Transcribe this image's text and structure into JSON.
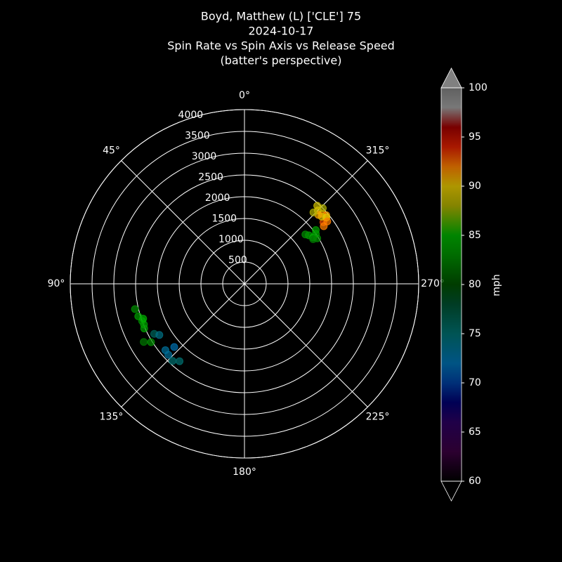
{
  "chart_data": {
    "type": "polar-scatter",
    "title": [
      "Boyd, Matthew (L) ['CLE'] 75",
      "2024-10-17",
      "Spin Rate vs Spin Axis vs Release Speed",
      "(batter's perspective)"
    ],
    "theta": [
      310,
      312,
      315,
      308,
      311,
      314,
      306,
      309,
      313,
      317,
      307,
      316,
      307,
      302,
      307,
      304,
      309,
      305,
      303,
      103,
      107,
      110,
      112,
      109,
      120,
      122,
      114,
      119,
      121,
      130,
      132,
      137,
      140,
      133
    ],
    "r": [
      2450,
      2400,
      2380,
      2300,
      2350,
      2500,
      2250,
      2420,
      2320,
      2450,
      2380,
      2280,
      1850,
      1970,
      2050,
      1900,
      1800,
      2000,
      1880,
      2580,
      2550,
      2500,
      2490,
      2460,
      2670,
      2530,
      2520,
      2370,
      2280,
      2370,
      2170,
      2420,
      2320,
      2390
    ],
    "c": [
      91,
      92,
      90,
      93,
      89,
      88,
      92,
      90,
      91,
      89,
      92,
      88,
      84,
      83,
      84,
      85,
      83,
      84,
      82,
      83,
      84,
      83,
      84,
      85,
      82,
      83,
      84,
      76,
      74,
      73,
      72,
      75,
      75,
      73
    ],
    "rlim": [
      0,
      4000
    ],
    "rticks": [
      500,
      1000,
      1500,
      2000,
      2500,
      3000,
      3500,
      4000
    ],
    "thetaticks": [
      {
        "value": 0,
        "label": "0°"
      },
      {
        "value": 45,
        "label": "45°"
      },
      {
        "value": 90,
        "label": "90°"
      },
      {
        "value": 135,
        "label": "135°"
      },
      {
        "value": 180,
        "label": "180°"
      },
      {
        "value": 225,
        "label": "225°"
      },
      {
        "value": 270,
        "label": "270°"
      },
      {
        "value": 315,
        "label": "315°"
      }
    ],
    "clim": [
      60,
      100
    ],
    "cticks": [
      60,
      65,
      70,
      75,
      80,
      85,
      90,
      95,
      100
    ],
    "colorbar_label": "mph",
    "colormap": [
      [
        60,
        "#000000"
      ],
      [
        63,
        "#3a0040"
      ],
      [
        66,
        "#2a0060"
      ],
      [
        68,
        "#000070"
      ],
      [
        70,
        "#0040a0"
      ],
      [
        72,
        "#0070b0"
      ],
      [
        75,
        "#007070"
      ],
      [
        78,
        "#005030"
      ],
      [
        80,
        "#005000"
      ],
      [
        83,
        "#009000"
      ],
      [
        85,
        "#00b000"
      ],
      [
        88,
        "#b0b000"
      ],
      [
        90,
        "#e8c800"
      ],
      [
        92,
        "#ff8000"
      ],
      [
        94,
        "#e02000"
      ],
      [
        96,
        "#a00000"
      ],
      [
        98,
        "#a0a0a0"
      ],
      [
        100,
        "#808080"
      ]
    ]
  }
}
